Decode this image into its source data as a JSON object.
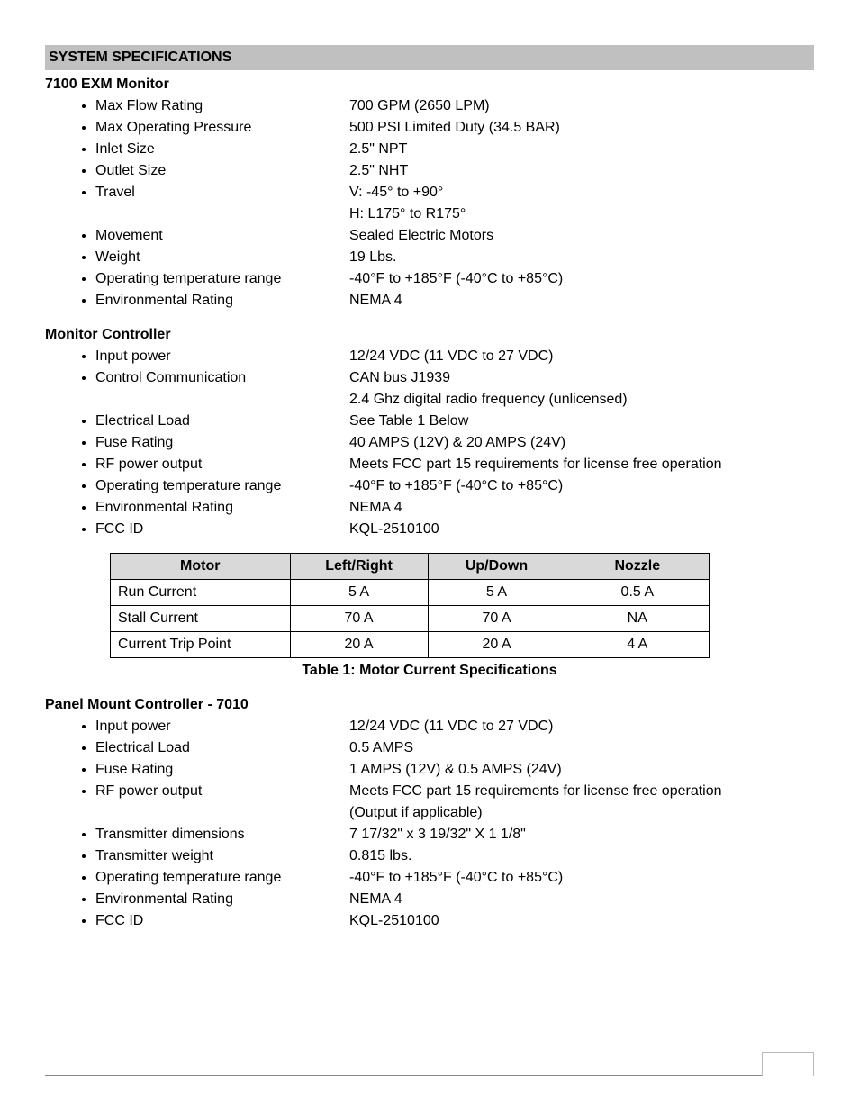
{
  "header_title": "SYSTEM SPECIFICATIONS",
  "section1": {
    "title": "7100 EXM Monitor",
    "items": [
      {
        "label": "Max Flow Rating",
        "value": "700 GPM (2650 LPM)"
      },
      {
        "label": "Max Operating Pressure",
        "value": "500 PSI Limited Duty (34.5 BAR)"
      },
      {
        "label": "Inlet Size",
        "value": "2.5\" NPT"
      },
      {
        "label": "Outlet Size",
        "value": "2.5\" NHT"
      },
      {
        "label": "Travel",
        "value": "V: -45° to +90°",
        "value2": "H: L175° to R175°"
      },
      {
        "label": "Movement",
        "value": "Sealed Electric Motors"
      },
      {
        "label": "Weight",
        "value": "19 Lbs."
      },
      {
        "label": "Operating temperature range",
        "value": "-40°F to +185°F (-40°C to +85°C)"
      },
      {
        "label": "Environmental Rating",
        "value": "NEMA 4"
      }
    ]
  },
  "section2": {
    "title": "Monitor Controller",
    "items": [
      {
        "label": "Input power",
        "value": "12/24 VDC (11 VDC to 27 VDC)"
      },
      {
        "label": "Control Communication",
        "value": "CAN bus J1939",
        "value2": "2.4 Ghz digital radio frequency (unlicensed)"
      },
      {
        "label": "Electrical Load",
        "value": "See Table 1 Below"
      },
      {
        "label": "Fuse Rating",
        "value": "40 AMPS (12V) & 20 AMPS (24V)"
      },
      {
        "label": "RF power output",
        "value": "Meets FCC part 15 requirements for license free operation"
      },
      {
        "label": "Operating temperature range",
        "value": "-40°F to +185°F (-40°C to +85°C)"
      },
      {
        "label": "Environmental Rating",
        "value": "NEMA 4"
      },
      {
        "label": "FCC ID",
        "value": "KQL-2510100"
      }
    ]
  },
  "table": {
    "caption": "Table 1:  Motor Current Specifications",
    "headers": [
      "Motor",
      "Left/Right",
      "Up/Down",
      "Nozzle"
    ],
    "rows": [
      [
        "Run Current",
        "5 A",
        "5 A",
        "0.5 A"
      ],
      [
        "Stall Current",
        "70 A",
        "70 A",
        "NA"
      ],
      [
        "Current Trip Point",
        "20 A",
        "20 A",
        "4 A"
      ]
    ],
    "col_widths": [
      "30%",
      "23%",
      "23%",
      "24%"
    ],
    "header_bg": "#d9d9d9",
    "border_color": "#000000"
  },
  "section3": {
    "title": "Panel Mount Controller - 7010",
    "items": [
      {
        "label": "Input power",
        "value": "12/24 VDC (11 VDC to 27 VDC)"
      },
      {
        "label": "Electrical Load",
        "value": "0.5 AMPS"
      },
      {
        "label": "Fuse Rating",
        "value": "1 AMPS (12V) & 0.5 AMPS (24V)"
      },
      {
        "label": "RF power output",
        "value": "Meets FCC part 15 requirements for license free operation",
        "value2": "(Output if applicable)"
      },
      {
        "label": "Transmitter dimensions",
        "value": "7 17/32\" x 3 19/32\" X 1 1/8\""
      },
      {
        "label": "Transmitter weight",
        "value": "0.815 lbs."
      },
      {
        "label": "Operating temperature range",
        "value": "-40°F to +185°F (-40°C to +85°C)"
      },
      {
        "label": "Environmental Rating",
        "value": "NEMA 4"
      },
      {
        "label": "FCC ID",
        "value": "KQL-2510100"
      }
    ]
  },
  "colors": {
    "section_bar_bg": "#c0c0c0",
    "page_bg": "#ffffff",
    "text": "#000000"
  },
  "font_family": "Century Gothic"
}
